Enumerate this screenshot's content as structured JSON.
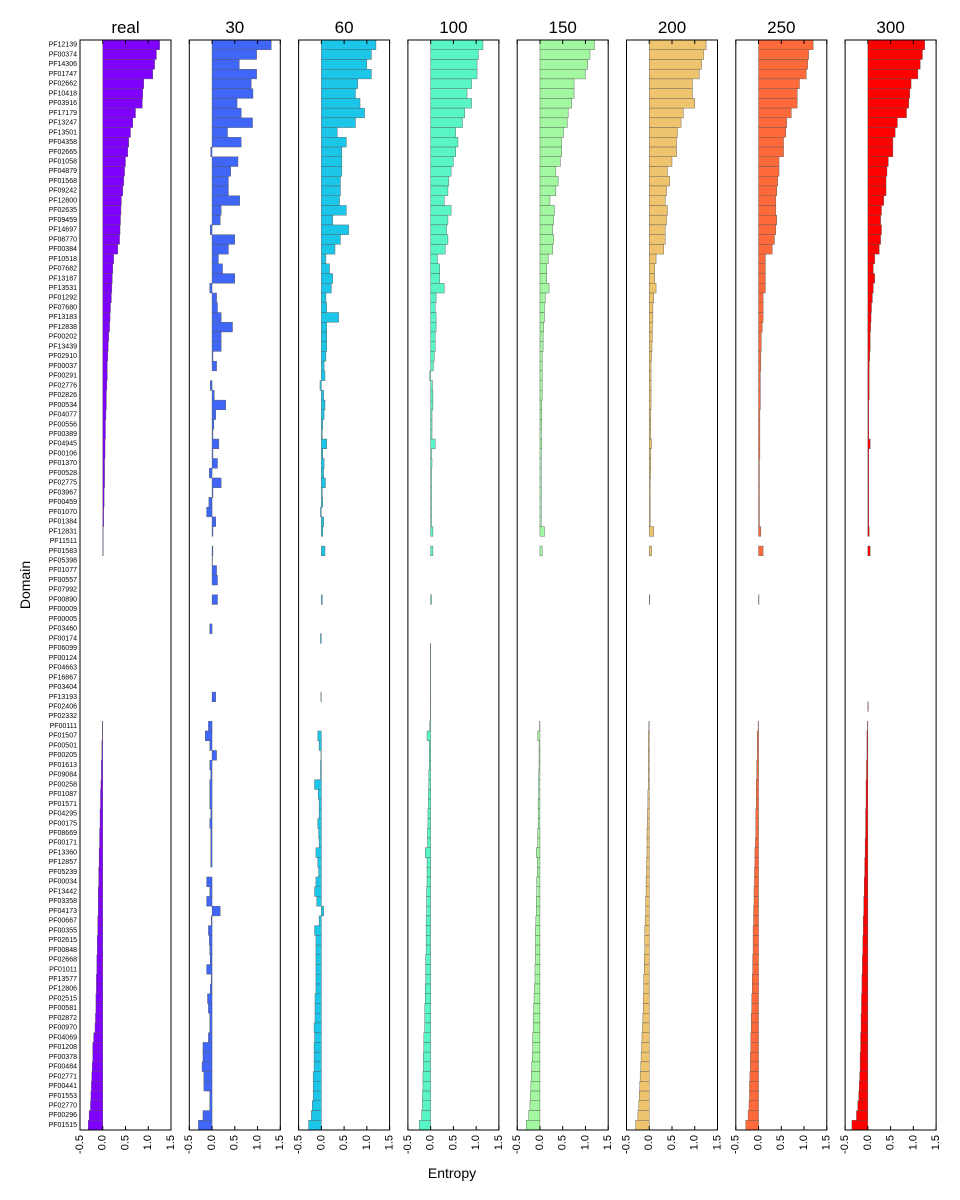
{
  "chart_data": {
    "type": "barh",
    "xlabel": "Entropy",
    "ylabel": "Domain",
    "xlim": [
      -0.5,
      1.5
    ],
    "xticks": [
      -0.5,
      {
        "value": 0,
        "label": "0.0"
      },
      0.5,
      {
        "value": 1,
        "label": "1.0"
      },
      1.5
    ],
    "categories": [
      "PF12139",
      "PF00374",
      "PF14306",
      "PF01747",
      "PF02662",
      "PF10418",
      "PF03916",
      "PF17179",
      "PF13247",
      "PF13501",
      "PF04358",
      "PF02665",
      "PF01058",
      "PF04879",
      "PF01568",
      "PF09242",
      "PF12800",
      "PF02635",
      "PF09459",
      "PF14697",
      "PF08770",
      "PF00384",
      "PF10518",
      "PF07682",
      "PF13187",
      "PF13531",
      "PF01292",
      "PF07680",
      "PF13183",
      "PF12838",
      "PF00202",
      "PF13439",
      "PF02910",
      "PF00037",
      "PF00291",
      "PF02776",
      "PF02826",
      "PF00534",
      "PF04077",
      "PF00556",
      "PF00389",
      "PF04945",
      "PF00106",
      "PF01370",
      "PF00528",
      "PF02775",
      "PF03967",
      "PF00459",
      "PF01070",
      "PF01384",
      "PF12831",
      "PF11511",
      "PF01583",
      "PF05398",
      "PF01077",
      "PF00557",
      "PF07992",
      "PF00890",
      "PF00009",
      "PF00005",
      "PF03460",
      "PF00174",
      "PF06099",
      "PF00124",
      "PF04663",
      "PF16867",
      "PF03404",
      "PF13193",
      "PF02406",
      "PF02332",
      "PF00111",
      "PF01507",
      "PF00501",
      "PF00205",
      "PF01613",
      "PF09084",
      "PF00258",
      "PF01087",
      "PF01571",
      "PF04295",
      "PF00175",
      "PF08669",
      "PF00171",
      "PF13360",
      "PF12857",
      "PF05239",
      "PF00034",
      "PF13442",
      "PF03358",
      "PF04173",
      "PF00667",
      "PF00355",
      "PF02615",
      "PF00848",
      "PF02668",
      "PF01011",
      "PF13577",
      "PF12806",
      "PF02515",
      "PF00581",
      "PF02872",
      "PF00970",
      "PF04069",
      "PF01208",
      "PF00378",
      "PF00484",
      "PF02771",
      "PF00441",
      "PF01553",
      "PF02770",
      "PF00296",
      "PF01515"
    ],
    "series": [
      {
        "name": "real",
        "color": "#7f00ff",
        "values": [
          1.25,
          1.18,
          1.14,
          1.1,
          0.9,
          0.88,
          0.87,
          0.72,
          0.66,
          0.61,
          0.57,
          0.55,
          0.5,
          0.48,
          0.46,
          0.44,
          0.41,
          0.4,
          0.39,
          0.38,
          0.37,
          0.33,
          0.24,
          0.22,
          0.21,
          0.2,
          0.19,
          0.17,
          0.16,
          0.15,
          0.13,
          0.12,
          0.11,
          0.1,
          0.1,
          0.09,
          0.08,
          0.08,
          0.07,
          0.06,
          0.06,
          0.05,
          0.05,
          0.04,
          0.04,
          0.04,
          0.03,
          0.03,
          0.02,
          0.02,
          0.01,
          0.01,
          0.01,
          0,
          0,
          0,
          0,
          0,
          0,
          0,
          0,
          0,
          0,
          0,
          0,
          0,
          0,
          0,
          0,
          0,
          -0.01,
          -0.01,
          -0.02,
          -0.02,
          -0.03,
          -0.03,
          -0.04,
          -0.05,
          -0.05,
          -0.06,
          -0.06,
          -0.07,
          -0.07,
          -0.08,
          -0.08,
          -0.09,
          -0.09,
          -0.1,
          -0.1,
          -0.1,
          -0.11,
          -0.11,
          -0.12,
          -0.12,
          -0.13,
          -0.13,
          -0.14,
          -0.14,
          -0.15,
          -0.15,
          -0.16,
          -0.17,
          -0.2,
          -0.22,
          -0.22,
          -0.23,
          -0.24,
          -0.25,
          -0.26,
          -0.27,
          -0.3,
          -0.32
        ]
      },
      {
        "name": "30",
        "color": "#3f66f6",
        "values": [
          1.3,
          0.98,
          0.6,
          0.98,
          0.86,
          0.9,
          0.55,
          0.64,
          0.89,
          0.34,
          0.64,
          -0.03,
          0.57,
          0.41,
          0.36,
          0.36,
          0.61,
          0.2,
          0.18,
          -0.04,
          0.5,
          0.36,
          0.14,
          0.23,
          0.5,
          -0.05,
          0.1,
          0.12,
          0.2,
          0.45,
          0.2,
          0.2,
          0.02,
          0.1,
          0,
          -0.04,
          0.05,
          0.3,
          0.08,
          0.04,
          0.02,
          0.15,
          0.02,
          0.12,
          -0.06,
          0.2,
          0.02,
          -0.07,
          -0.12,
          0.08,
          0.02,
          0,
          0.02,
          0.01,
          0.1,
          0.12,
          0,
          0.12,
          0,
          0,
          -0.05,
          0,
          0,
          0,
          0,
          0,
          0,
          0.08,
          0,
          0,
          -0.08,
          -0.15,
          -0.05,
          0.1,
          -0.05,
          -0.03,
          -0.05,
          -0.05,
          -0.05,
          -0.03,
          -0.05,
          -0.03,
          -0.03,
          -0.03,
          -0.03,
          0,
          -0.12,
          -0.05,
          -0.12,
          0.18,
          -0.02,
          -0.08,
          -0.06,
          -0.05,
          -0.04,
          -0.12,
          -0.02,
          -0.04,
          -0.1,
          -0.08,
          -0.05,
          -0.05,
          -0.08,
          -0.2,
          -0.2,
          -0.22,
          -0.18,
          -0.18,
          -0.05,
          -0.05,
          -0.2,
          -0.3
        ]
      },
      {
        "name": "60",
        "color": "#1cc6e8",
        "values": [
          1.2,
          1.1,
          1.0,
          1.1,
          0.8,
          0.75,
          0.85,
          0.95,
          0.75,
          0.35,
          0.55,
          0.45,
          0.45,
          0.45,
          0.42,
          0.42,
          0.4,
          0.55,
          0.25,
          0.6,
          0.42,
          0.3,
          0.1,
          0.18,
          0.25,
          0.22,
          0.1,
          0.12,
          0.38,
          0.12,
          0.12,
          0.12,
          0.1,
          0.06,
          0.08,
          -0.03,
          0.05,
          0.08,
          0.06,
          0.03,
          0.02,
          0.12,
          0.03,
          0.06,
          0.05,
          0.09,
          0.02,
          0.03,
          -0.02,
          0.05,
          0.03,
          0,
          0.08,
          0,
          0,
          0,
          0,
          0.02,
          0,
          0,
          0,
          -0.02,
          0,
          0,
          0,
          0,
          0,
          -0.01,
          0,
          0,
          0,
          -0.08,
          -0.05,
          -0.01,
          -0.02,
          -0.02,
          -0.15,
          -0.07,
          -0.05,
          -0.05,
          -0.08,
          -0.06,
          -0.05,
          -0.12,
          -0.08,
          -0.06,
          -0.12,
          -0.15,
          -0.1,
          0.05,
          -0.05,
          -0.15,
          -0.12,
          -0.12,
          -0.12,
          -0.12,
          -0.12,
          -0.12,
          -0.14,
          -0.14,
          -0.14,
          -0.16,
          -0.15,
          -0.16,
          -0.16,
          -0.16,
          -0.18,
          -0.18,
          -0.18,
          -0.2,
          -0.22,
          -0.28
        ]
      },
      {
        "name": "100",
        "color": "#5af5c6",
        "values": [
          1.15,
          1.05,
          1.02,
          1.02,
          0.9,
          0.8,
          0.9,
          0.75,
          0.7,
          0.55,
          0.6,
          0.55,
          0.5,
          0.45,
          0.4,
          0.38,
          0.3,
          0.45,
          0.38,
          0.35,
          0.38,
          0.32,
          0.15,
          0.2,
          0.2,
          0.3,
          0.12,
          0.1,
          0.12,
          0.12,
          0.1,
          0.1,
          0.08,
          0.06,
          -0.02,
          0.04,
          0.05,
          0.05,
          0.03,
          0.03,
          0.03,
          0.1,
          0.02,
          0.03,
          0.02,
          0.02,
          0.02,
          0.02,
          0.02,
          0.02,
          0.05,
          0,
          0.05,
          0,
          0,
          0,
          0,
          0.02,
          0,
          0,
          0,
          0,
          -0.01,
          -0.01,
          -0.01,
          -0.01,
          -0.01,
          -0.01,
          -0.01,
          -0.01,
          -0.02,
          -0.08,
          -0.03,
          -0.03,
          -0.03,
          -0.04,
          -0.04,
          -0.05,
          -0.05,
          -0.06,
          -0.06,
          -0.07,
          -0.07,
          -0.12,
          -0.08,
          -0.08,
          -0.08,
          -0.09,
          -0.09,
          -0.09,
          -0.1,
          -0.1,
          -0.1,
          -0.1,
          -0.11,
          -0.11,
          -0.11,
          -0.12,
          -0.12,
          -0.13,
          -0.13,
          -0.13,
          -0.15,
          -0.15,
          -0.16,
          -0.16,
          -0.17,
          -0.17,
          -0.18,
          -0.18,
          -0.2,
          -0.25
        ]
      },
      {
        "name": "150",
        "color": "#a2f7a0",
        "values": [
          1.2,
          1.1,
          1.05,
          1.0,
          0.75,
          0.75,
          0.7,
          0.62,
          0.6,
          0.52,
          0.48,
          0.48,
          0.45,
          0.35,
          0.4,
          0.35,
          0.22,
          0.32,
          0.3,
          0.28,
          0.3,
          0.28,
          0.18,
          0.15,
          0.15,
          0.2,
          0.12,
          0.1,
          0.1,
          0.08,
          0.07,
          0.07,
          0.05,
          0.05,
          0.05,
          0.05,
          0.05,
          0.04,
          0.04,
          0.04,
          0.03,
          0.04,
          0.03,
          0.03,
          0.03,
          0.03,
          0.03,
          0.03,
          0.03,
          0.03,
          0.1,
          0,
          0.05,
          0,
          0,
          0,
          0,
          0,
          0,
          0,
          0,
          0,
          0,
          0,
          0,
          0,
          0,
          0,
          0,
          0,
          -0.01,
          -0.05,
          -0.02,
          -0.02,
          -0.02,
          -0.03,
          -0.03,
          -0.03,
          -0.04,
          -0.04,
          -0.04,
          -0.05,
          -0.05,
          -0.08,
          -0.06,
          -0.06,
          -0.07,
          -0.07,
          -0.08,
          -0.08,
          -0.09,
          -0.1,
          -0.1,
          -0.1,
          -0.1,
          -0.11,
          -0.11,
          -0.12,
          -0.13,
          -0.14,
          -0.15,
          -0.15,
          -0.16,
          -0.16,
          -0.17,
          -0.18,
          -0.19,
          -0.2,
          -0.21,
          -0.22,
          -0.25,
          -0.3
        ]
      },
      {
        "name": "200",
        "color": "#eec46e",
        "values": [
          1.25,
          1.2,
          1.15,
          1.1,
          0.95,
          0.95,
          1.0,
          0.75,
          0.7,
          0.62,
          0.6,
          0.6,
          0.5,
          0.4,
          0.45,
          0.38,
          0.35,
          0.4,
          0.38,
          0.35,
          0.35,
          0.32,
          0.15,
          0.12,
          0.12,
          0.15,
          0.1,
          0.08,
          0.08,
          0.07,
          0.07,
          0.06,
          0.05,
          0.04,
          0.04,
          0.04,
          0.04,
          0.04,
          0.03,
          0.03,
          0.03,
          0.05,
          0.03,
          0.03,
          0.03,
          0.02,
          0.02,
          0.02,
          0.02,
          0.02,
          0.1,
          0,
          0.05,
          0,
          0,
          0,
          0,
          0.01,
          0,
          0,
          0,
          0,
          0,
          0,
          0,
          0,
          0,
          0,
          0,
          0,
          -0.01,
          -0.02,
          -0.02,
          -0.02,
          -0.02,
          -0.02,
          -0.02,
          -0.03,
          -0.03,
          -0.04,
          -0.04,
          -0.05,
          -0.05,
          -0.05,
          -0.06,
          -0.06,
          -0.07,
          -0.07,
          -0.08,
          -0.08,
          -0.09,
          -0.1,
          -0.1,
          -0.1,
          -0.11,
          -0.11,
          -0.12,
          -0.12,
          -0.13,
          -0.13,
          -0.14,
          -0.15,
          -0.16,
          -0.17,
          -0.18,
          -0.19,
          -0.2,
          -0.21,
          -0.22,
          -0.23,
          -0.25,
          -0.3
        ]
      },
      {
        "name": "250",
        "color": "#ff6a3a",
        "values": [
          1.2,
          1.1,
          1.08,
          1.05,
          0.9,
          0.85,
          0.85,
          0.72,
          0.62,
          0.6,
          0.55,
          0.55,
          0.45,
          0.45,
          0.42,
          0.4,
          0.38,
          0.38,
          0.4,
          0.38,
          0.35,
          0.3,
          0.15,
          0.15,
          0.15,
          0.15,
          0.1,
          0.1,
          0.1,
          0.08,
          0.06,
          0.06,
          0.05,
          0.05,
          0.04,
          0.04,
          0.04,
          0.04,
          0.03,
          0.03,
          0.03,
          0.03,
          0.03,
          0.02,
          0.02,
          0.02,
          0.02,
          0.02,
          0.02,
          0.02,
          0.05,
          0,
          0.1,
          0,
          0,
          0,
          0,
          0.01,
          0,
          0,
          0,
          0,
          0,
          0,
          0,
          0,
          0,
          0,
          0,
          0,
          -0.01,
          -0.03,
          -0.03,
          -0.03,
          -0.04,
          -0.04,
          -0.05,
          -0.05,
          -0.05,
          -0.06,
          -0.06,
          -0.06,
          -0.07,
          -0.08,
          -0.08,
          -0.09,
          -0.09,
          -0.1,
          -0.1,
          -0.11,
          -0.11,
          -0.12,
          -0.12,
          -0.12,
          -0.13,
          -0.13,
          -0.14,
          -0.14,
          -0.15,
          -0.15,
          -0.16,
          -0.16,
          -0.17,
          -0.17,
          -0.18,
          -0.18,
          -0.19,
          -0.2,
          -0.2,
          -0.21,
          -0.23,
          -0.28
        ]
      },
      {
        "name": "300",
        "color": "#ff0000",
        "values": [
          1.25,
          1.2,
          1.15,
          1.1,
          0.95,
          0.92,
          0.9,
          0.85,
          0.65,
          0.6,
          0.55,
          0.55,
          0.45,
          0.42,
          0.4,
          0.4,
          0.35,
          0.3,
          0.28,
          0.3,
          0.28,
          0.25,
          0.15,
          0.12,
          0.15,
          0.12,
          0.1,
          0.08,
          0.07,
          0.06,
          0.05,
          0.05,
          0.04,
          0.03,
          0.03,
          0.03,
          0.03,
          0.02,
          0.02,
          0.02,
          0.02,
          0.05,
          0.02,
          0.02,
          0.02,
          0.02,
          0.02,
          0.02,
          0.02,
          0.02,
          0.03,
          0,
          0.05,
          0,
          0,
          0,
          0,
          0,
          0,
          0,
          0,
          0,
          0,
          0,
          0,
          0,
          0,
          0,
          0.01,
          0,
          -0.01,
          -0.02,
          -0.02,
          -0.02,
          -0.03,
          -0.03,
          -0.04,
          -0.04,
          -0.04,
          -0.05,
          -0.05,
          -0.05,
          -0.06,
          -0.06,
          -0.07,
          -0.07,
          -0.08,
          -0.08,
          -0.09,
          -0.09,
          -0.1,
          -0.1,
          -0.11,
          -0.11,
          -0.12,
          -0.12,
          -0.13,
          -0.13,
          -0.14,
          -0.14,
          -0.15,
          -0.15,
          -0.16,
          -0.16,
          -0.17,
          -0.17,
          -0.18,
          -0.19,
          -0.2,
          -0.22,
          -0.25,
          -0.35
        ]
      }
    ]
  }
}
